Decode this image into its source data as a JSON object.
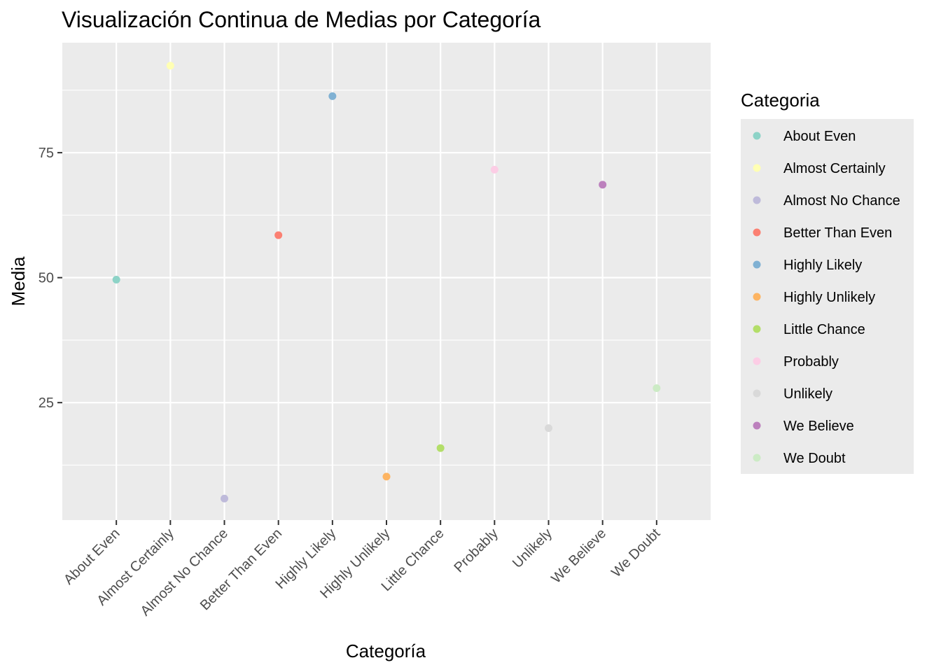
{
  "chart_data": {
    "type": "scatter",
    "title": "Visualización Continua de Medias por Categoría",
    "xlabel": "Categoría",
    "ylabel": "Media",
    "legend_title": "Categoria",
    "legend_position": "right",
    "grid": true,
    "ylim": [
      1.5,
      97
    ],
    "y_ticks": [
      25,
      50,
      75
    ],
    "categories": [
      "About Even",
      "Almost Certainly",
      "Almost No Chance",
      "Better Than Even",
      "Highly Likely",
      "Highly Unlikely",
      "Little Chance",
      "Probably",
      "Unlikely",
      "We Believe",
      "We Doubt"
    ],
    "values": [
      49.6,
      92.4,
      5.8,
      58.5,
      86.3,
      10.2,
      15.9,
      71.6,
      19.9,
      68.6,
      27.9
    ],
    "colors": [
      "#8DD3C7",
      "#FFFFB3",
      "#BEBADA",
      "#FB8072",
      "#80B1D3",
      "#FDB462",
      "#B3DE69",
      "#FCCDE5",
      "#D9D9D9",
      "#BC80BD",
      "#CCEBC5"
    ]
  }
}
